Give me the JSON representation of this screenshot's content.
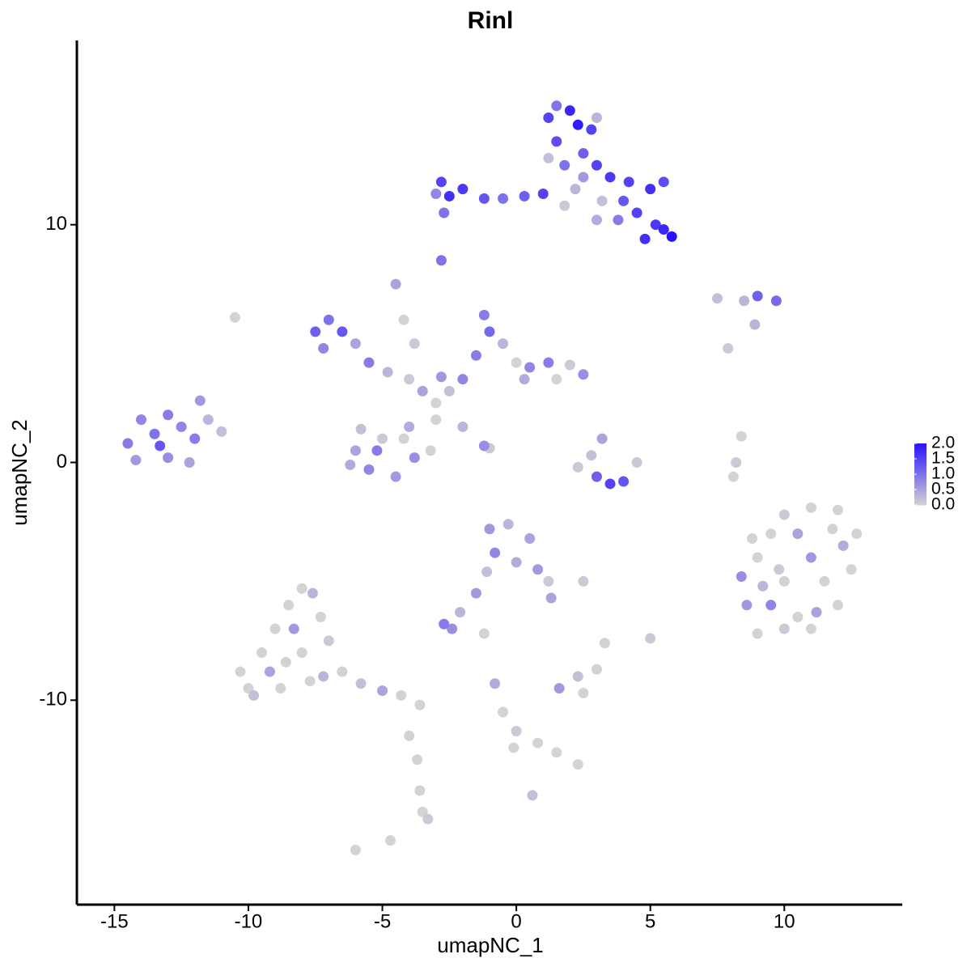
{
  "chart_data": {
    "type": "scatter",
    "title": "Rinl",
    "x_label": "umapNC_1",
    "y_label": "umapNC_2",
    "xlim": [
      -16.4,
      14.4
    ],
    "ylim": [
      -18.6,
      17.75
    ],
    "xticks": [
      -15,
      -10,
      -5,
      0,
      5,
      10
    ],
    "yticks": [
      -10,
      0,
      10
    ],
    "color_low": "#d3d3d3",
    "color_high": "#2a12ff",
    "colorbar_lim": [
      0,
      2
    ],
    "colorbar_ticks": [
      {
        "value": 0,
        "label": "0.0"
      },
      {
        "value": 0.5,
        "label": "0.5"
      },
      {
        "value": 1,
        "label": "1.0"
      },
      {
        "value": 1.5,
        "label": "1.5"
      },
      {
        "value": 2,
        "label": "2.0"
      }
    ],
    "x": [
      1.2,
      2,
      2.8,
      1.5,
      2.5,
      1.8,
      3,
      3.5,
      4.2,
      5,
      5.5,
      4,
      4.5,
      5.2,
      5.8,
      4.8,
      5.5,
      3.8,
      3.2,
      2.2,
      1,
      0.3,
      -0.5,
      -1.2,
      -2,
      -2.8,
      -2.5,
      -3,
      -2.7,
      -2.8,
      3,
      1.8,
      2.5,
      1.2,
      2.3,
      3,
      1.5,
      -7.5,
      -7,
      -6.5,
      -7.2,
      -6,
      -5.5,
      -4.8,
      -4,
      -3.5,
      -3,
      -2.5,
      -2,
      -1.5,
      -1,
      -1.2,
      -0.5,
      0,
      0.5,
      1.2,
      2,
      2.5,
      1.5,
      -4.5,
      -4.2,
      -3.8,
      -2,
      -1,
      -1.2,
      -3,
      -4,
      -5,
      -6,
      -5.5,
      -4.5,
      -3.8,
      -4.2,
      -5.2,
      -6.2,
      -5.8,
      -3.2,
      -2.8,
      0.3,
      -14.5,
      -14,
      -13.5,
      -13,
      -12.5,
      -12,
      -11.5,
      -11.8,
      -13,
      -12.2,
      -14.2,
      -13.3,
      -11,
      3.5,
      4,
      3,
      2.8,
      3.2,
      4.5,
      2.3,
      7.5,
      8.5,
      9.7,
      9,
      8.9,
      7.9,
      8.4,
      8.2,
      8.1,
      8.4,
      9,
      9.5,
      10,
      11,
      12,
      12.7,
      12.5,
      12,
      11,
      10,
      9,
      8.6,
      10,
      11,
      11.5,
      10.5,
      9.5,
      11.2,
      12.2,
      9.8,
      11.8,
      9.2,
      10.5,
      8.8,
      -1,
      -0.3,
      0.5,
      -0.8,
      0,
      0.8,
      1.2,
      1.3,
      -1.1,
      -1.5,
      -2.1,
      -2.7,
      -2.4,
      2.5,
      -1.2,
      1.6,
      2.3,
      3,
      2.5,
      3.3,
      5,
      -0.8,
      -0.5,
      0,
      -0.1,
      0.8,
      1.5,
      2.3,
      0.6,
      -10.3,
      -10,
      -9.5,
      -9,
      -8.5,
      -8,
      -7.6,
      -7.3,
      -7,
      -8,
      -8.8,
      -9.2,
      -8.3,
      -7.7,
      -7.2,
      -6.5,
      -5.8,
      -5,
      -4.3,
      -3.6,
      -4,
      -3.7,
      -3.6,
      -3.3,
      -3.5,
      -4.7,
      -6,
      -10.5,
      -9.8,
      -8.6
    ],
    "y": [
      14.5,
      14.8,
      14,
      13.5,
      13,
      12.5,
      12.5,
      12,
      11.8,
      11.5,
      11.8,
      11,
      10.5,
      10,
      9.5,
      9.4,
      9.8,
      10.2,
      11,
      11.5,
      11.3,
      11.2,
      11.1,
      11.1,
      11.5,
      11.8,
      11.2,
      11.3,
      10.5,
      8.5,
      10.2,
      10.8,
      12,
      12.8,
      14.2,
      14.5,
      15,
      5.5,
      6,
      5.5,
      4.8,
      5,
      4.2,
      3.8,
      3.5,
      3,
      2.5,
      3,
      3.5,
      4.5,
      5.5,
      6.2,
      5,
      4.2,
      4,
      4.2,
      4.1,
      3.7,
      3.5,
      7.5,
      6,
      5,
      1.5,
      0.6,
      0.7,
      1.8,
      1.5,
      1,
      0.5,
      -0.3,
      -0.6,
      0.2,
      1,
      0.5,
      -0.1,
      1.4,
      0.5,
      3.6,
      3.5,
      0.8,
      1.8,
      1.2,
      2,
      1.5,
      1,
      1.8,
      2.6,
      0.2,
      0,
      0.1,
      0.7,
      1.3,
      -0.9,
      -0.8,
      -0.6,
      0.3,
      1,
      0,
      -0.2,
      6.9,
      6.8,
      6.8,
      7,
      5.8,
      4.8,
      1.1,
      0,
      -0.6,
      -4.8,
      -4,
      -3,
      -2.2,
      -1.9,
      -2,
      -3,
      -4.5,
      -6,
      -7,
      -7,
      -7.2,
      -6,
      -5,
      -4,
      -5,
      -3,
      -6,
      -6.3,
      -3.5,
      -4.5,
      -2.8,
      -5.2,
      -6.5,
      -3.2,
      -2.8,
      -2.6,
      -3.2,
      -3.8,
      -4.2,
      -4.5,
      -5,
      -5.7,
      -4.6,
      -5.5,
      -6.3,
      -6.8,
      -7,
      -5,
      -7.2,
      -9.5,
      -9,
      -8.7,
      -9.7,
      -7.6,
      -7.4,
      -9.3,
      -10.5,
      -11.3,
      -12,
      -11.8,
      -12.2,
      -12.7,
      -14,
      -8.8,
      -9.5,
      -8,
      -7,
      -6,
      -5.3,
      -5.5,
      -6.5,
      -7.5,
      -8,
      -9.5,
      -8.8,
      -7,
      -9.2,
      -9,
      -8.8,
      -9.3,
      -9.6,
      -9.8,
      -10.2,
      -11.5,
      -12.5,
      -13.8,
      -15,
      -14.7,
      -15.9,
      -16.3,
      6.1,
      -9.8,
      -8.4
    ],
    "color_values": [
      1.5,
      1.8,
      1.5,
      1.4,
      1.2,
      1,
      1.5,
      1.6,
      1.5,
      1.7,
      1.4,
      1.3,
      1.5,
      1.6,
      2.0,
      1.7,
      1.8,
      0.9,
      0.2,
      0.3,
      1.5,
      1.2,
      1.0,
      1.3,
      1.6,
      1.5,
      1.7,
      0.8,
      1.0,
      1,
      0.4,
      0.1,
      0.6,
      0.2,
      1.9,
      0.3,
      1.0,
      1.2,
      1,
      1.3,
      0.8,
      0.5,
      0.9,
      0.3,
      0.1,
      0.5,
      0,
      0.2,
      0.8,
      0.9,
      1.1,
      0.9,
      0.3,
      0,
      0.8,
      0.9,
      0.1,
      0.7,
      0,
      0.5,
      0,
      0.1,
      0.3,
      0.1,
      0.7,
      0,
      0.4,
      0.1,
      0.5,
      0.8,
      0.6,
      0.7,
      0,
      0.9,
      0.4,
      0.2,
      0,
      0.6,
      0.4,
      0.9,
      0.8,
      1,
      0.9,
      0.8,
      0.9,
      0.3,
      0.6,
      0.7,
      0.5,
      0.6,
      1.3,
      0.2,
      1.5,
      1.3,
      1.2,
      0.2,
      0.5,
      0.1,
      0.1,
      0.2,
      0.3,
      1.1,
      1.2,
      0.3,
      0.1,
      0,
      0.1,
      0,
      0.7,
      0,
      0,
      0.1,
      0,
      0,
      0,
      0,
      0,
      0,
      0.1,
      0,
      0.6,
      0,
      0.6,
      0,
      0.5,
      0.8,
      0.5,
      0.4,
      0.1,
      0,
      0.3,
      0,
      0,
      0.6,
      0.3,
      0.5,
      0.8,
      0.4,
      0.6,
      0.1,
      0.5,
      0.2,
      0.6,
      0.3,
      0.9,
      0.7,
      0.1,
      0,
      0.6,
      0.2,
      0,
      0,
      0,
      0.1,
      0.4,
      0,
      0.1,
      0,
      0,
      0,
      0,
      0.2,
      0,
      0,
      0,
      0,
      0,
      0,
      0.3,
      0,
      0.1,
      0,
      0,
      0.5,
      0.6,
      0,
      0.3,
      0,
      0.2,
      0.5,
      0,
      0,
      0,
      0,
      0,
      0.1,
      0,
      0,
      0,
      0,
      0.2,
      0
    ]
  }
}
